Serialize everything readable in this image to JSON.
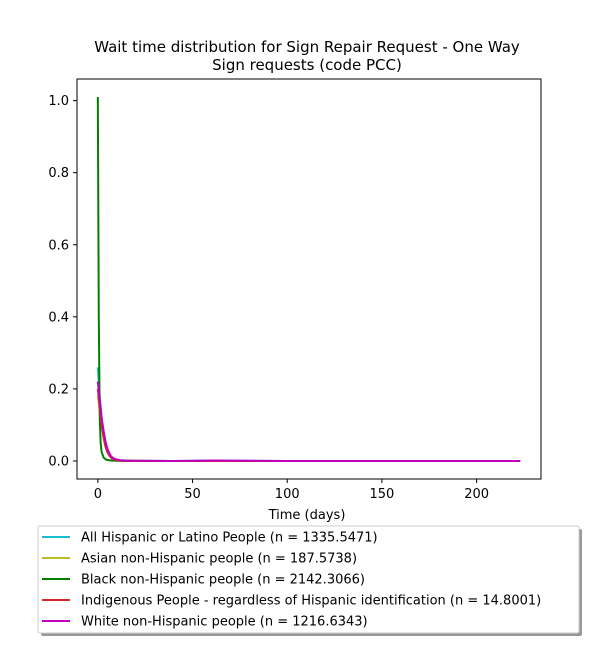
{
  "chart_data": {
    "type": "line",
    "title_lines": [
      "Wait time distribution  for Sign Repair Request - One Way",
      "Sign  requests (code PCC)"
    ],
    "xlabel": "Time (days)",
    "ylabel": "",
    "xlim": [
      -11,
      234
    ],
    "ylim": [
      -0.05,
      1.06
    ],
    "xticks": [
      0,
      50,
      100,
      150,
      200
    ],
    "yticks": [
      0.0,
      0.2,
      0.4,
      0.6,
      0.8,
      1.0
    ],
    "xtick_labels": [
      "0",
      "50",
      "100",
      "150",
      "200"
    ],
    "ytick_labels": [
      "0.0",
      "0.2",
      "0.4",
      "0.6",
      "0.8",
      "1.0"
    ],
    "grid": false,
    "legend_position": "below",
    "series": [
      {
        "name": "All Hispanic or Latino People (n = 1335.5471)",
        "color": "#17becf",
        "x": [
          0,
          1,
          2,
          3,
          4,
          5,
          6,
          7,
          8,
          10,
          12,
          15,
          20,
          40,
          60,
          100,
          150,
          200,
          223
        ],
        "y": [
          0.26,
          0.18,
          0.12,
          0.08,
          0.05,
          0.03,
          0.018,
          0.01,
          0.006,
          0.003,
          0.002,
          0.001,
          0.0005,
          0,
          0.001,
          0,
          0,
          0,
          0
        ]
      },
      {
        "name": "Asian non-Hispanic people (n = 187.5738)",
        "color": "#bcbd22",
        "x": [
          0,
          1,
          2,
          3,
          4,
          5,
          6,
          7,
          8,
          10,
          12,
          15,
          20,
          40,
          60,
          100,
          150,
          200,
          223
        ],
        "y": [
          0.18,
          0.14,
          0.1,
          0.07,
          0.045,
          0.03,
          0.02,
          0.012,
          0.008,
          0.004,
          0.002,
          0.001,
          0.0005,
          0,
          0,
          0,
          0,
          0,
          0
        ]
      },
      {
        "name": "Black non-Hispanic people (n = 2142.3066)",
        "color": "#008000",
        "x": [
          0,
          0.5,
          1,
          1.5,
          2,
          3,
          4,
          5,
          6,
          8,
          10,
          15,
          20,
          40,
          60,
          100,
          150,
          200,
          223
        ],
        "y": [
          1.01,
          0.4,
          0.12,
          0.05,
          0.025,
          0.01,
          0.005,
          0.003,
          0.002,
          0.001,
          0.0005,
          0,
          0,
          0,
          0,
          0,
          0,
          0,
          0
        ]
      },
      {
        "name": "Indigenous People - regardless of Hispanic identification (n = 14.8001)",
        "color": "#d62728",
        "x": [
          0,
          1,
          2,
          3,
          4,
          5,
          6,
          7,
          8,
          10,
          12,
          15,
          20,
          40,
          60,
          100,
          150,
          200,
          223
        ],
        "y": [
          0.2,
          0.15,
          0.1,
          0.065,
          0.04,
          0.025,
          0.015,
          0.009,
          0.005,
          0.002,
          0.001,
          0.0005,
          0,
          0,
          0,
          0,
          0,
          0,
          0
        ]
      },
      {
        "name": "White non-Hispanic people (n = 1216.6343)",
        "color": "#bf00bf",
        "x": [
          0,
          1,
          2,
          3,
          4,
          5,
          6,
          7,
          8,
          10,
          12,
          15,
          20,
          40,
          60,
          100,
          150,
          200,
          223
        ],
        "y": [
          0.22,
          0.17,
          0.12,
          0.085,
          0.055,
          0.035,
          0.022,
          0.013,
          0.008,
          0.004,
          0.002,
          0.001,
          0.0005,
          0,
          0.0015,
          0,
          0,
          0,
          0
        ]
      }
    ]
  }
}
